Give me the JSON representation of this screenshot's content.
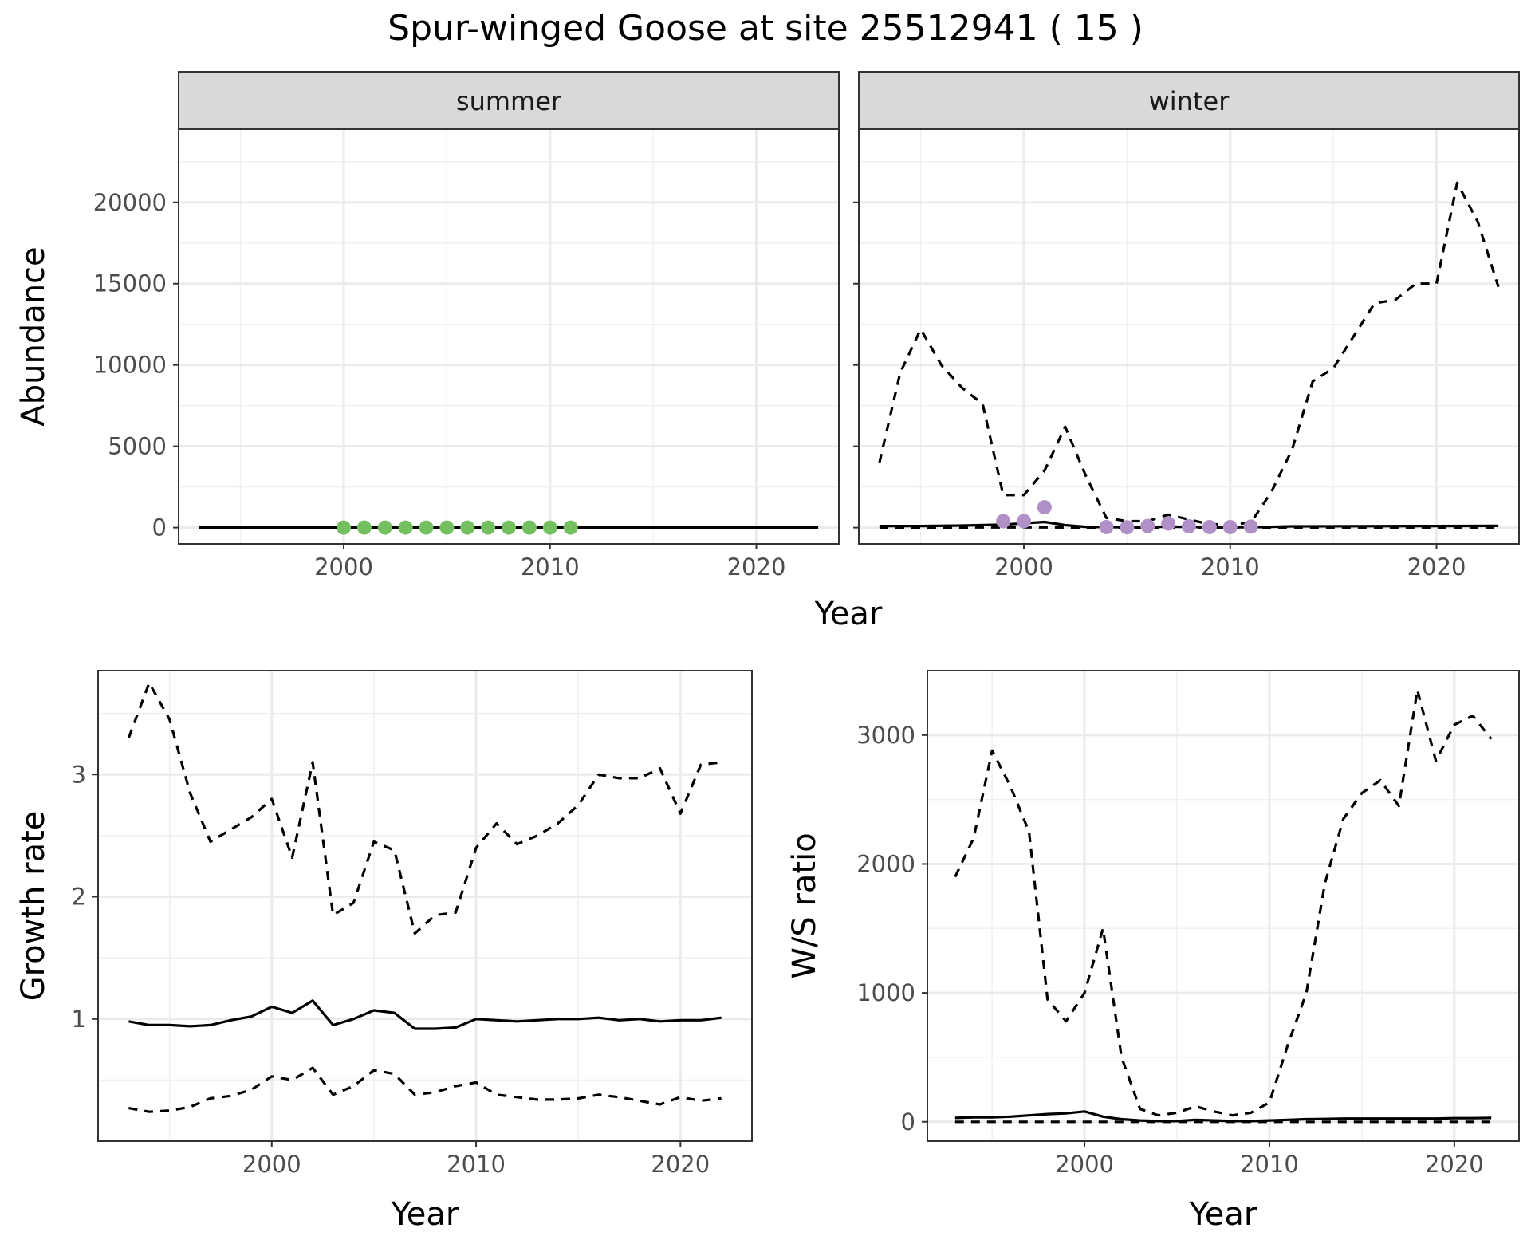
{
  "title": "Spur-winged Goose at site 25512941 ( 15 )",
  "chart_data": [
    {
      "type": "line",
      "panel": "abundance",
      "facets": [
        "summer",
        "winter"
      ],
      "xlabel": "Year",
      "ylabel": "Abundance",
      "xlim": [
        1992,
        2024
      ],
      "ylim": [
        -1000,
        24500
      ],
      "xticks": [
        2000,
        2010,
        2020
      ],
      "yticks": [
        0,
        5000,
        10000,
        15000,
        20000
      ],
      "grid": true,
      "legend": "none",
      "summer": {
        "lower": {
          "style": "dashed",
          "x": [
            1993,
            2000,
            2010,
            2023
          ],
          "y": [
            0,
            0,
            0,
            0
          ]
        },
        "estimate": {
          "style": "solid",
          "x": [
            1993,
            2000,
            2010,
            2023
          ],
          "y": [
            0,
            0,
            0,
            0
          ]
        },
        "upper": {
          "style": "dashed",
          "x": [
            1993,
            2000,
            2010,
            2023
          ],
          "y": [
            50,
            40,
            30,
            50
          ]
        },
        "observed": {
          "color": "#74c060",
          "x": [
            2000,
            2001,
            2002,
            2003,
            2004,
            2005,
            2006,
            2007,
            2008,
            2009,
            2010,
            2011
          ],
          "y": [
            0,
            0,
            0,
            0,
            0,
            0,
            0,
            0,
            0,
            0,
            0,
            0
          ]
        }
      },
      "winter": {
        "upper": {
          "style": "dashed",
          "x": [
            1993,
            1994,
            1995,
            1996,
            1997,
            1998,
            1999,
            2000,
            2001,
            2002,
            2003,
            2004,
            2005,
            2006,
            2007,
            2008,
            2009,
            2010,
            2011,
            2012,
            2013,
            2014,
            2015,
            2016,
            2017,
            2018,
            2019,
            2020,
            2021,
            2022,
            2023
          ],
          "y": [
            4000,
            9500,
            12200,
            10000,
            8600,
            7600,
            2000,
            2000,
            3500,
            6200,
            3200,
            600,
            400,
            400,
            800,
            500,
            200,
            200,
            300,
            2200,
            4800,
            9000,
            9800,
            11800,
            13800,
            14000,
            15000,
            15000,
            21200,
            18800,
            14800
          ]
        },
        "estimate": {
          "style": "solid",
          "x": [
            1993,
            1995,
            1997,
            1999,
            2001,
            2002,
            2003,
            2005,
            2007,
            2009,
            2011,
            2013,
            2016,
            2020,
            2023
          ],
          "y": [
            100,
            100,
            130,
            180,
            350,
            150,
            50,
            20,
            60,
            30,
            20,
            80,
            90,
            100,
            110
          ]
        },
        "lower": {
          "style": "dashed",
          "x": [
            1993,
            2000,
            2005,
            2010,
            2015,
            2020,
            2023
          ],
          "y": [
            0,
            20,
            0,
            0,
            0,
            0,
            0
          ]
        },
        "observed": {
          "color": "#b190c8",
          "x": [
            1999,
            2000,
            2001,
            2004,
            2005,
            2006,
            2007,
            2008,
            2009,
            2010,
            2011
          ],
          "y": [
            400,
            400,
            1250,
            30,
            20,
            100,
            250,
            80,
            30,
            30,
            60
          ]
        }
      }
    },
    {
      "type": "line",
      "panel": "growth",
      "xlabel": "Year",
      "ylabel": "Growth rate",
      "xlim": [
        1991.5,
        2023.5
      ],
      "ylim": [
        0.0,
        3.85
      ],
      "xticks": [
        2000,
        2010,
        2020
      ],
      "yticks": [
        1,
        2,
        3
      ],
      "grid": true,
      "legend": "none",
      "series": [
        {
          "style": "dashed",
          "x": [
            1993,
            1994,
            1995,
            1996,
            1997,
            1998,
            1999,
            2000,
            2001,
            2002,
            2003,
            2004,
            2005,
            2006,
            2007,
            2008,
            2009,
            2010,
            2011,
            2012,
            2013,
            2014,
            2015,
            2016,
            2017,
            2018,
            2019,
            2020,
            2021,
            2022
          ],
          "y": [
            3.3,
            3.75,
            3.45,
            2.85,
            2.45,
            2.55,
            2.65,
            2.8,
            2.32,
            3.1,
            1.85,
            1.95,
            2.45,
            2.38,
            1.7,
            1.85,
            1.87,
            2.4,
            2.6,
            2.43,
            2.5,
            2.6,
            2.75,
            3.0,
            2.97,
            2.97,
            3.05,
            2.68,
            3.08,
            3.1
          ]
        },
        {
          "style": "solid",
          "x": [
            1993,
            1994,
            1995,
            1996,
            1997,
            1998,
            1999,
            2000,
            2001,
            2002,
            2003,
            2004,
            2005,
            2006,
            2007,
            2008,
            2009,
            2010,
            2011,
            2012,
            2013,
            2014,
            2015,
            2016,
            2017,
            2018,
            2019,
            2020,
            2021,
            2022
          ],
          "y": [
            0.98,
            0.95,
            0.95,
            0.94,
            0.95,
            0.99,
            1.02,
            1.1,
            1.05,
            1.15,
            0.95,
            1.0,
            1.07,
            1.05,
            0.92,
            0.92,
            0.93,
            1.0,
            0.99,
            0.98,
            0.99,
            1.0,
            1.0,
            1.01,
            0.99,
            1.0,
            0.98,
            0.99,
            0.99,
            1.01
          ]
        },
        {
          "style": "dashed",
          "x": [
            1993,
            1994,
            1995,
            1996,
            1997,
            1998,
            1999,
            2000,
            2001,
            2002,
            2003,
            2004,
            2005,
            2006,
            2007,
            2008,
            2009,
            2010,
            2011,
            2012,
            2013,
            2014,
            2015,
            2016,
            2017,
            2018,
            2019,
            2020,
            2021,
            2022
          ],
          "y": [
            0.27,
            0.24,
            0.25,
            0.28,
            0.35,
            0.37,
            0.42,
            0.53,
            0.5,
            0.6,
            0.38,
            0.45,
            0.58,
            0.55,
            0.38,
            0.4,
            0.45,
            0.48,
            0.38,
            0.36,
            0.34,
            0.34,
            0.35,
            0.38,
            0.36,
            0.33,
            0.3,
            0.36,
            0.33,
            0.35
          ]
        }
      ]
    },
    {
      "type": "line",
      "panel": "ws_ratio",
      "xlabel": "Year",
      "ylabel": "W/S ratio",
      "xlim": [
        1991.5,
        2023.5
      ],
      "ylim": [
        -150,
        3500
      ],
      "xticks": [
        2000,
        2010,
        2020
      ],
      "yticks": [
        0,
        1000,
        2000,
        3000
      ],
      "grid": true,
      "legend": "none",
      "series": [
        {
          "style": "dashed",
          "x": [
            1993,
            1994,
            1995,
            1996,
            1997,
            1998,
            1999,
            2000,
            2001,
            2002,
            2003,
            2004,
            2005,
            2006,
            2007,
            2008,
            2009,
            2010,
            2011,
            2012,
            2013,
            2014,
            2015,
            2016,
            2017,
            2018,
            2019,
            2020,
            2021,
            2022
          ],
          "y": [
            1900,
            2200,
            2880,
            2600,
            2250,
            950,
            780,
            1000,
            1500,
            500,
            100,
            50,
            70,
            120,
            80,
            50,
            70,
            150,
            600,
            1000,
            1850,
            2350,
            2550,
            2650,
            2450,
            3350,
            2800,
            3080,
            3150,
            2970
          ]
        },
        {
          "style": "solid",
          "x": [
            1993,
            1994,
            1995,
            1996,
            1997,
            1998,
            1999,
            2000,
            2001,
            2002,
            2003,
            2004,
            2005,
            2006,
            2007,
            2008,
            2009,
            2010,
            2011,
            2012,
            2013,
            2014,
            2015,
            2016,
            2017,
            2018,
            2019,
            2020,
            2021,
            2022
          ],
          "y": [
            30,
            35,
            35,
            40,
            50,
            60,
            65,
            80,
            40,
            20,
            10,
            5,
            5,
            15,
            10,
            5,
            5,
            10,
            15,
            20,
            22,
            25,
            25,
            25,
            25,
            25,
            25,
            28,
            28,
            30
          ]
        },
        {
          "style": "dashed",
          "x": [
            1993,
            2000,
            2010,
            2022
          ],
          "y": [
            0,
            0,
            0,
            0
          ]
        }
      ]
    }
  ]
}
